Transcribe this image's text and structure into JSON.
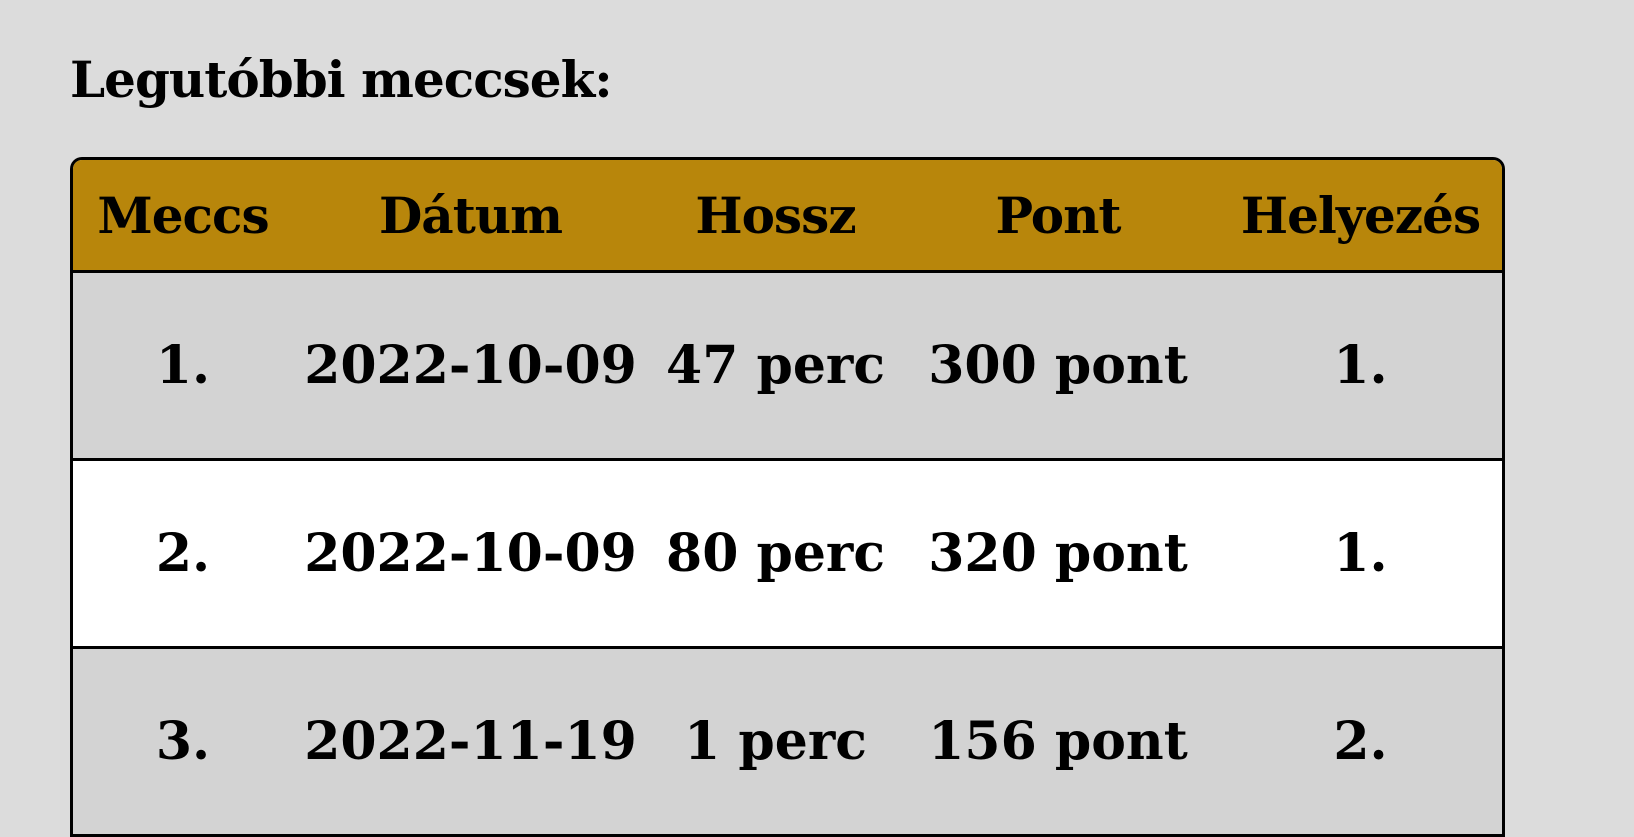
{
  "heading": "Legutóbbi meccsek:",
  "table": {
    "header": [
      "Meccs",
      "Dátum",
      "Hossz",
      "Pont",
      "Helyezés"
    ],
    "rows": [
      [
        "1.",
        "2022-10-09",
        "47 perc",
        "300 pont",
        "1."
      ],
      [
        "2.",
        "2022-10-09",
        "80 perc",
        "320 pont",
        "1."
      ],
      [
        "3.",
        "2022-11-19",
        "1 perc",
        "156 pont",
        "2."
      ]
    ]
  }
}
